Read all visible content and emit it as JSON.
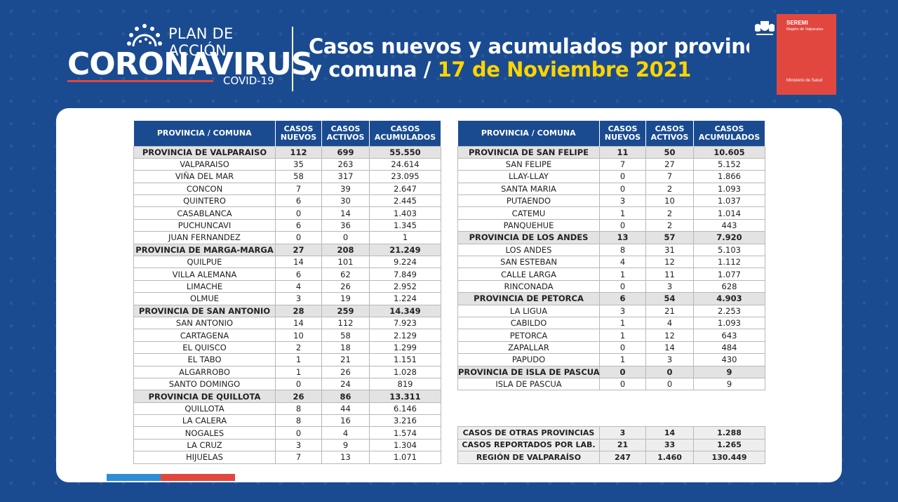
{
  "header": {
    "plan_label": "PLAN DE ACCIÓN",
    "main_label": "CORONAVIRUS",
    "sub_label": "COVID-19",
    "title_line1": "Casos nuevos y acumulados por provincia",
    "title_line2_prefix": "y comuna / ",
    "title_date": "17 de Noviembre 2021"
  },
  "seremi": {
    "title": "SEREMI",
    "subtitle": "Región de Valparaíso",
    "ministry": "Ministerio de Salud"
  },
  "columns": {
    "place": "PROVINCIA / COMUNA",
    "new": "CASOS NUEVOS",
    "active": "CASOS ACTIVOS",
    "total": "CASOS ACUMULADOS"
  },
  "left_rows": [
    {
      "type": "prov",
      "name": "PROVINCIA DE VALPARAISO",
      "new": "112",
      "active": "699",
      "total": "55.550"
    },
    {
      "type": "com",
      "name": "VALPARAISO",
      "new": "35",
      "active": "263",
      "total": "24.614"
    },
    {
      "type": "com",
      "name": "VIÑA DEL MAR",
      "new": "58",
      "active": "317",
      "total": "23.095"
    },
    {
      "type": "com",
      "name": "CONCON",
      "new": "7",
      "active": "39",
      "total": "2.647"
    },
    {
      "type": "com",
      "name": "QUINTERO",
      "new": "6",
      "active": "30",
      "total": "2.445"
    },
    {
      "type": "com",
      "name": "CASABLANCA",
      "new": "0",
      "active": "14",
      "total": "1.403"
    },
    {
      "type": "com",
      "name": "PUCHUNCAVI",
      "new": "6",
      "active": "36",
      "total": "1.345"
    },
    {
      "type": "com",
      "name": "JUAN FERNANDEZ",
      "new": "0",
      "active": "0",
      "total": "1"
    },
    {
      "type": "prov",
      "name": "PROVINCIA DE MARGA-MARGA",
      "new": "27",
      "active": "208",
      "total": "21.249"
    },
    {
      "type": "com",
      "name": "QUILPUE",
      "new": "14",
      "active": "101",
      "total": "9.224"
    },
    {
      "type": "com",
      "name": "VILLA ALEMANA",
      "new": "6",
      "active": "62",
      "total": "7.849"
    },
    {
      "type": "com",
      "name": "LIMACHE",
      "new": "4",
      "active": "26",
      "total": "2.952"
    },
    {
      "type": "com",
      "name": "OLMUE",
      "new": "3",
      "active": "19",
      "total": "1.224"
    },
    {
      "type": "prov",
      "name": "PROVINCIA DE SAN ANTONIO",
      "new": "28",
      "active": "259",
      "total": "14.349"
    },
    {
      "type": "com",
      "name": "SAN ANTONIO",
      "new": "14",
      "active": "112",
      "total": "7.923"
    },
    {
      "type": "com",
      "name": "CARTAGENA",
      "new": "10",
      "active": "58",
      "total": "2.129"
    },
    {
      "type": "com",
      "name": "EL QUISCO",
      "new": "2",
      "active": "18",
      "total": "1.299"
    },
    {
      "type": "com",
      "name": "EL TABO",
      "new": "1",
      "active": "21",
      "total": "1.151"
    },
    {
      "type": "com",
      "name": "ALGARROBO",
      "new": "1",
      "active": "26",
      "total": "1.028"
    },
    {
      "type": "com",
      "name": "SANTO DOMINGO",
      "new": "0",
      "active": "24",
      "total": "819"
    },
    {
      "type": "prov",
      "name": "PROVINCIA DE QUILLOTA",
      "new": "26",
      "active": "86",
      "total": "13.311"
    },
    {
      "type": "com",
      "name": "QUILLOTA",
      "new": "8",
      "active": "44",
      "total": "6.146"
    },
    {
      "type": "com",
      "name": "LA CALERA",
      "new": "8",
      "active": "16",
      "total": "3.216"
    },
    {
      "type": "com",
      "name": "NOGALES",
      "new": "0",
      "active": "4",
      "total": "1.574"
    },
    {
      "type": "com",
      "name": "LA CRUZ",
      "new": "3",
      "active": "9",
      "total": "1.304"
    },
    {
      "type": "com",
      "name": "HIJUELAS",
      "new": "7",
      "active": "13",
      "total": "1.071"
    }
  ],
  "right_rows": [
    {
      "type": "prov",
      "name": "PROVINCIA DE SAN FELIPE",
      "new": "11",
      "active": "50",
      "total": "10.605"
    },
    {
      "type": "com",
      "name": "SAN FELIPE",
      "new": "7",
      "active": "27",
      "total": "5.152"
    },
    {
      "type": "com",
      "name": "LLAY-LLAY",
      "new": "0",
      "active": "7",
      "total": "1.866"
    },
    {
      "type": "com",
      "name": "SANTA MARIA",
      "new": "0",
      "active": "2",
      "total": "1.093"
    },
    {
      "type": "com",
      "name": "PUTAENDO",
      "new": "3",
      "active": "10",
      "total": "1.037"
    },
    {
      "type": "com",
      "name": "CATEMU",
      "new": "1",
      "active": "2",
      "total": "1.014"
    },
    {
      "type": "com",
      "name": "PANQUEHUE",
      "new": "0",
      "active": "2",
      "total": "443"
    },
    {
      "type": "prov",
      "name": "PROVINCIA DE LOS ANDES",
      "new": "13",
      "active": "57",
      "total": "7.920"
    },
    {
      "type": "com",
      "name": "LOS ANDES",
      "new": "8",
      "active": "31",
      "total": "5.103"
    },
    {
      "type": "com",
      "name": "SAN ESTEBAN",
      "new": "4",
      "active": "12",
      "total": "1.112"
    },
    {
      "type": "com",
      "name": "CALLE LARGA",
      "new": "1",
      "active": "11",
      "total": "1.077"
    },
    {
      "type": "com",
      "name": "RINCONADA",
      "new": "0",
      "active": "3",
      "total": "628"
    },
    {
      "type": "prov",
      "name": "PROVINCIA DE PETORCA",
      "new": "6",
      "active": "54",
      "total": "4.903"
    },
    {
      "type": "com",
      "name": "LA LIGUA",
      "new": "3",
      "active": "21",
      "total": "2.253"
    },
    {
      "type": "com",
      "name": "CABILDO",
      "new": "1",
      "active": "4",
      "total": "1.093"
    },
    {
      "type": "com",
      "name": "PETORCA",
      "new": "1",
      "active": "12",
      "total": "643"
    },
    {
      "type": "com",
      "name": "ZAPALLAR",
      "new": "0",
      "active": "14",
      "total": "484"
    },
    {
      "type": "com",
      "name": "PAPUDO",
      "new": "1",
      "active": "3",
      "total": "430"
    },
    {
      "type": "prov",
      "name": "PROVINCIA DE ISLA DE PASCUA",
      "new": "0",
      "active": "0",
      "total": "9"
    },
    {
      "type": "com",
      "name": "ISLA DE PASCUA",
      "new": "0",
      "active": "0",
      "total": "9"
    }
  ],
  "summary_rows": [
    {
      "name": "CASOS DE OTRAS PROVINCIAS",
      "new": "3",
      "active": "14",
      "total": "1.288"
    },
    {
      "name": "CASOS REPORTADOS POR LAB.",
      "new": "21",
      "active": "33",
      "total": "1.265"
    },
    {
      "name": "REGIÓN DE VALPARAÍSO",
      "new": "247",
      "active": "1.460",
      "total": "130.449"
    }
  ],
  "colors": {
    "background": "#1a4b91",
    "header_fill": "#1a4b91",
    "province_row": "#e3e3e3",
    "accent_red": "#e1473e",
    "accent_blue": "#2e8ed3",
    "date_yellow": "#ffd400"
  }
}
